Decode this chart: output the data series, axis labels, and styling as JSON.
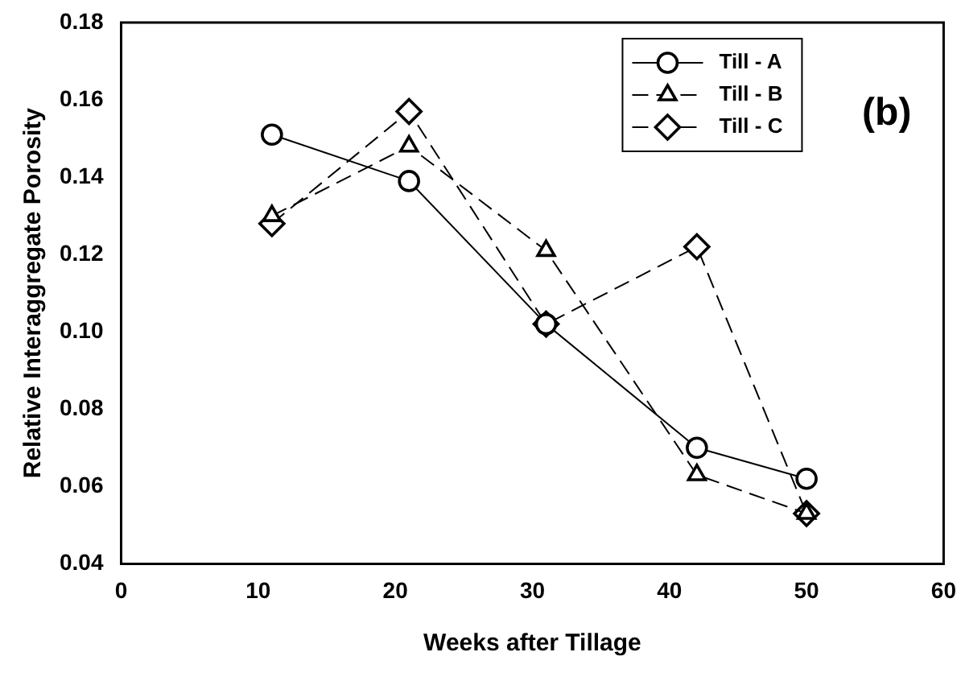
{
  "chart_data": {
    "type": "line",
    "xlabel": "Weeks after Tillage",
    "ylabel": "Relative Interaggregate Porosity",
    "annotations": [
      "(b)"
    ],
    "xlim": [
      0,
      60
    ],
    "xticks": [
      0,
      10,
      20,
      30,
      40,
      50,
      60
    ],
    "ylim": [
      0.04,
      0.18
    ],
    "yticks": [
      0.04,
      0.06,
      0.08,
      {
        "value": 0.1,
        "label": "0.10"
      },
      0.12,
      0.14,
      0.16,
      0.18
    ],
    "grid": false,
    "legend": "top right",
    "series": [
      {
        "name": "Till - A",
        "color": "#000000",
        "x": [
          11,
          21,
          31,
          42,
          50
        ],
        "values": [
          0.151,
          0.139,
          0.102,
          0.07,
          0.062
        ],
        "marker": "circle",
        "line_style": "solid"
      },
      {
        "name": "Till - B",
        "color": "#000000",
        "x": [
          11,
          21,
          31,
          42,
          50
        ],
        "values": [
          0.13,
          0.148,
          0.121,
          0.063,
          0.053
        ],
        "marker": "triangle",
        "line_style": "dashed"
      },
      {
        "name": "Till - C",
        "color": "#000000",
        "x": [
          11,
          21,
          31,
          42,
          50
        ],
        "values": [
          0.128,
          0.157,
          0.102,
          0.122,
          0.053
        ],
        "marker": "diamond",
        "line_style": "dashed"
      }
    ]
  }
}
